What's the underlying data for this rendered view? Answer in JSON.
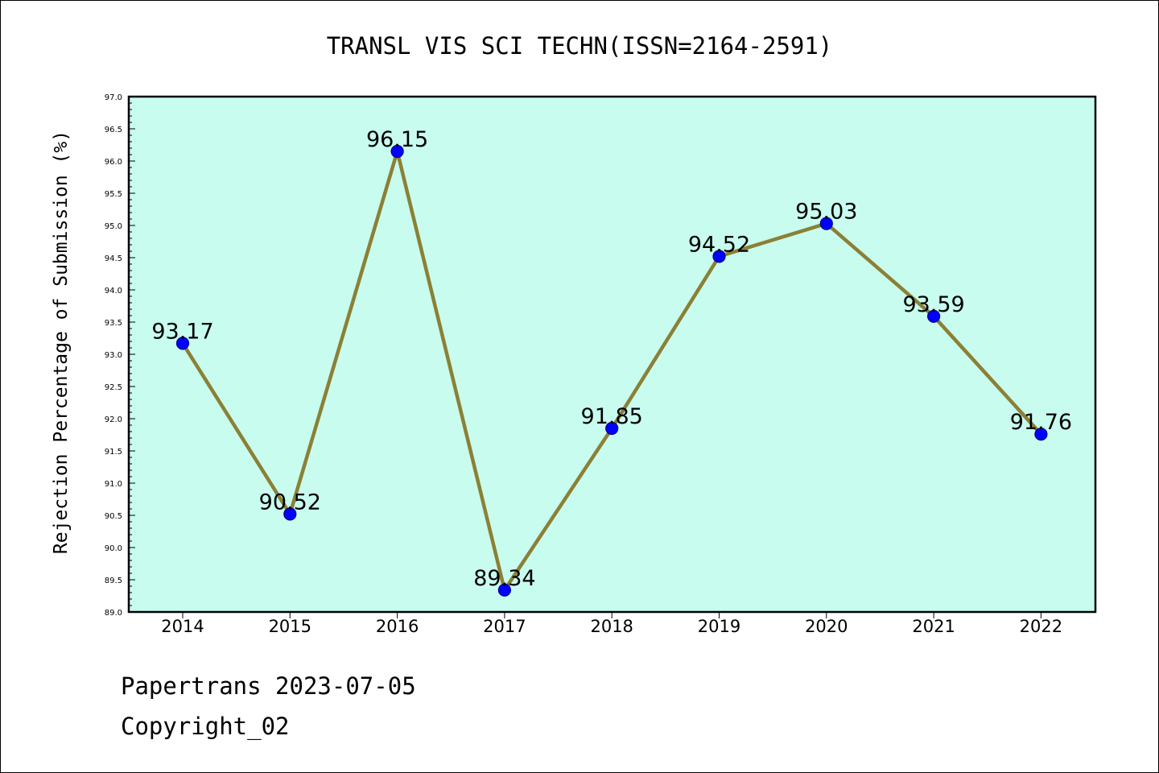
{
  "chart_data": {
    "type": "line",
    "title": "TRANSL VIS SCI TECHN(ISSN=2164-2591)",
    "xlabel": "",
    "ylabel": "Rejection Percentage of Submission (%)",
    "categories": [
      "2014",
      "2015",
      "2016",
      "2017",
      "2018",
      "2019",
      "2020",
      "2021",
      "2022"
    ],
    "values": [
      93.17,
      90.52,
      96.15,
      89.34,
      91.85,
      94.52,
      95.03,
      93.59,
      91.76
    ],
    "data_labels": [
      "93.17",
      "90.52",
      "96.15",
      "89.34",
      "91.85",
      "94.52",
      "95.03",
      "93.59",
      "91.76"
    ],
    "ylim": [
      89.0,
      97.0
    ],
    "yticks": [
      "89.0",
      "89.5",
      "90.0",
      "90.5",
      "91.0",
      "91.5",
      "92.0",
      "92.5",
      "93.0",
      "93.5",
      "94.0",
      "94.5",
      "95.0",
      "95.5",
      "96.0",
      "96.5",
      "97.0"
    ],
    "grid": false,
    "legend": "none",
    "colors": {
      "plot_background": "#c8fcef",
      "line": "#8b8035",
      "marker_fill": "#0000ff",
      "marker_edge": "#00008b"
    }
  },
  "footer": {
    "line1": "Papertrans 2023-07-05",
    "line2": "Copyright_02"
  }
}
